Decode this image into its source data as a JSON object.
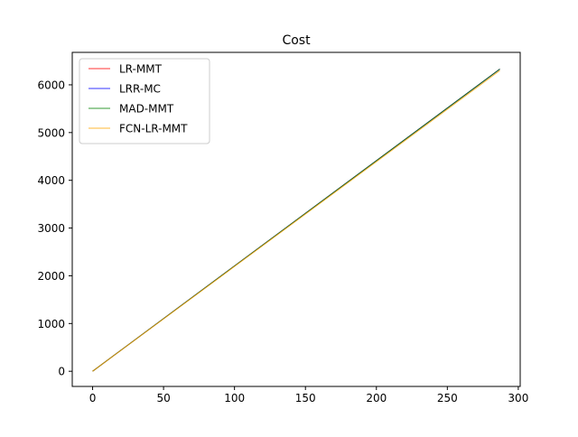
{
  "chart_data": {
    "type": "line",
    "title": "Cost",
    "xlabel": "",
    "ylabel": "",
    "xlim": [
      -14.35,
      301.35
    ],
    "ylim": [
      -318,
      6680
    ],
    "xticks": [
      0,
      50,
      100,
      150,
      200,
      250,
      300
    ],
    "yticks": [
      0,
      1000,
      2000,
      3000,
      4000,
      5000,
      6000
    ],
    "grid": false,
    "legend_position": "upper left",
    "series": [
      {
        "name": "LR-MMT",
        "color": "#ff0000",
        "x": [
          0,
          287
        ],
        "y": [
          0,
          6330
        ]
      },
      {
        "name": "LRR-MC",
        "color": "#0000ff",
        "x": [
          0,
          287
        ],
        "y": [
          0,
          6330
        ]
      },
      {
        "name": "MAD-MMT",
        "color": "#008000",
        "x": [
          0,
          287
        ],
        "y": [
          0,
          6330
        ]
      },
      {
        "name": "FCN-LR-MMT",
        "color": "#ffa500",
        "x": [
          0,
          287
        ],
        "y": [
          0,
          6300
        ]
      }
    ]
  }
}
